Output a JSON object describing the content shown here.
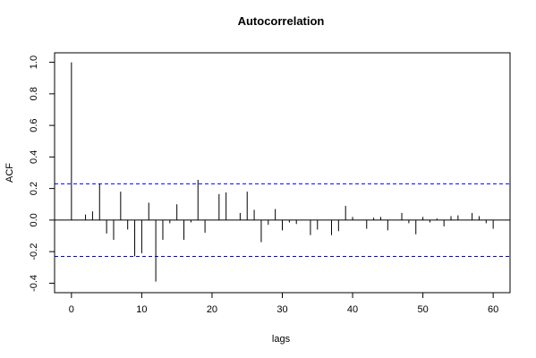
{
  "chart_data": {
    "type": "bar",
    "title": "Autocorrelation",
    "xlabel": "lags",
    "ylabel": "ACF",
    "xlim": [
      -2.4,
      62.4
    ],
    "ylim": [
      -0.46,
      1.06
    ],
    "x_ticks": [
      0,
      10,
      20,
      30,
      40,
      50,
      60
    ],
    "y_ticks": [
      -0.4,
      -0.2,
      0.0,
      0.2,
      0.4,
      0.6,
      0.8,
      1.0
    ],
    "y_tick_labels": [
      "-0.4",
      "-0.2",
      "0.0",
      "0.2",
      "0.4",
      "0.6",
      "0.8",
      "1.0"
    ],
    "zero_line": true,
    "confidence_bounds": [
      0.23,
      -0.23
    ],
    "colors": {
      "bars": "#000000",
      "bounds": "#0000ff"
    },
    "lags": [
      0,
      1,
      2,
      3,
      4,
      5,
      6,
      7,
      8,
      9,
      10,
      11,
      12,
      13,
      14,
      15,
      16,
      17,
      18,
      19,
      20,
      21,
      22,
      23,
      24,
      25,
      26,
      27,
      28,
      29,
      30,
      31,
      32,
      33,
      34,
      35,
      36,
      37,
      38,
      39,
      40,
      41,
      42,
      43,
      44,
      45,
      46,
      47,
      48,
      49,
      50,
      51,
      52,
      53,
      54,
      55,
      56,
      57,
      58,
      59,
      60
    ],
    "acf": [
      1.0,
      0.0,
      0.035,
      0.055,
      0.23,
      -0.085,
      -0.125,
      0.18,
      -0.06,
      -0.23,
      -0.21,
      0.11,
      -0.39,
      -0.125,
      -0.02,
      0.1,
      -0.125,
      -0.015,
      0.255,
      -0.08,
      0.0,
      0.165,
      0.175,
      0.0,
      0.045,
      0.18,
      0.065,
      -0.14,
      -0.03,
      0.07,
      -0.065,
      -0.015,
      -0.025,
      0.0,
      -0.095,
      -0.06,
      0.0,
      -0.095,
      -0.07,
      0.09,
      0.02,
      0.0,
      -0.055,
      0.015,
      0.02,
      -0.065,
      0.0,
      0.045,
      -0.02,
      -0.09,
      0.02,
      -0.015,
      0.01,
      -0.04,
      0.025,
      0.03,
      0.0,
      0.045,
      0.025,
      -0.02,
      -0.055
    ]
  }
}
